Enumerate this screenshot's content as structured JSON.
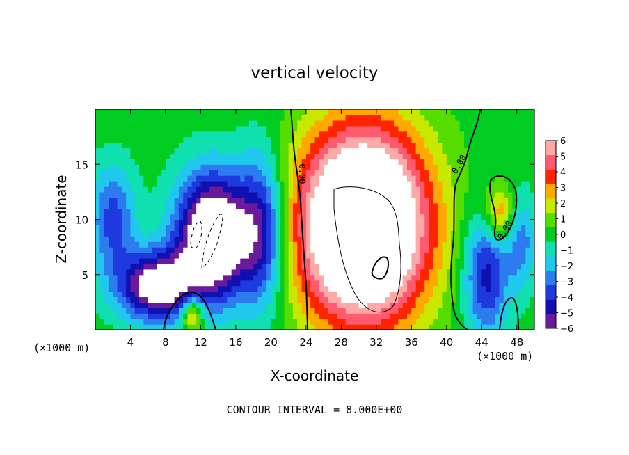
{
  "chart_data": {
    "type": "heatmap",
    "title": "vertical velocity",
    "xlabel": "X-coordinate",
    "ylabel": "Z-coordinate",
    "x_unit_left": "(×1000 m)",
    "x_unit_right": "(×1000 m)",
    "footer": "CONTOUR INTERVAL = 8.000E+00",
    "xlim": [
      0,
      50
    ],
    "ylim": [
      0,
      20
    ],
    "x_ticks": [
      4,
      8,
      12,
      16,
      20,
      24,
      28,
      32,
      36,
      40,
      44,
      48
    ],
    "x_tick_labels": [
      "4",
      "8",
      "12",
      "16",
      "20",
      "24",
      "28",
      "32",
      "36",
      "40",
      "44",
      "48"
    ],
    "y_ticks": [
      5,
      10,
      15
    ],
    "y_tick_labels": [
      "5",
      "10",
      "15"
    ],
    "colorbar": {
      "min": -6,
      "max": 6,
      "tick_values": [
        6,
        5,
        4,
        3,
        2,
        1,
        0,
        -1,
        -2,
        -3,
        -4,
        -5,
        -6
      ],
      "tick_labels": [
        "6",
        "5",
        "4",
        "3",
        "2",
        "1",
        "0",
        "−1",
        "−2",
        "−3",
        "−4",
        "−5",
        "−6"
      ]
    },
    "contour_labels": [
      "0.00",
      "0.00",
      "0.00"
    ],
    "features": [
      {
        "sign": "updraft",
        "x": 30.5,
        "z": 9.5,
        "sx": 5.2,
        "sz": 6.2,
        "amp": 13
      },
      {
        "sign": "downdraft",
        "x": 13.5,
        "z": 8.5,
        "sx": 3.0,
        "sz": 4.0,
        "amp": -10
      },
      {
        "sign": "downdraft",
        "x": 7.0,
        "z": 4.0,
        "sx": 3.0,
        "sz": 2.2,
        "amp": -8
      },
      {
        "sign": "downdraft",
        "x": 19.0,
        "z": 9.0,
        "sx": 1.8,
        "sz": 5.0,
        "amp": -5
      },
      {
        "sign": "downdraft",
        "x": 2.0,
        "z": 10.0,
        "sx": 1.8,
        "sz": 3.5,
        "amp": -4
      },
      {
        "sign": "downdraft",
        "x": 44.5,
        "z": 5.0,
        "sx": 1.8,
        "sz": 4.0,
        "amp": -5
      },
      {
        "sign": "downdraft",
        "x": 48.5,
        "z": 8.0,
        "sx": 1.2,
        "sz": 3.0,
        "amp": -3
      },
      {
        "sign": "updraft",
        "x": 46.0,
        "z": 10.5,
        "sx": 1.2,
        "sz": 1.8,
        "amp": 4
      },
      {
        "sign": "updraft",
        "x": 11.0,
        "z": 1.5,
        "sx": 0.9,
        "sz": 1.2,
        "amp": 5
      }
    ],
    "colors": [
      "#6a1a9a",
      "#1010b0",
      "#1e3adf",
      "#2c7cf0",
      "#20c8ee",
      "#10e0b0",
      "#00cc22",
      "#55dd00",
      "#c8e800",
      "#ffa800",
      "#ff2400",
      "#ff5a6e",
      "#ffa8a8"
    ],
    "saturation_color": "#ffffff"
  }
}
